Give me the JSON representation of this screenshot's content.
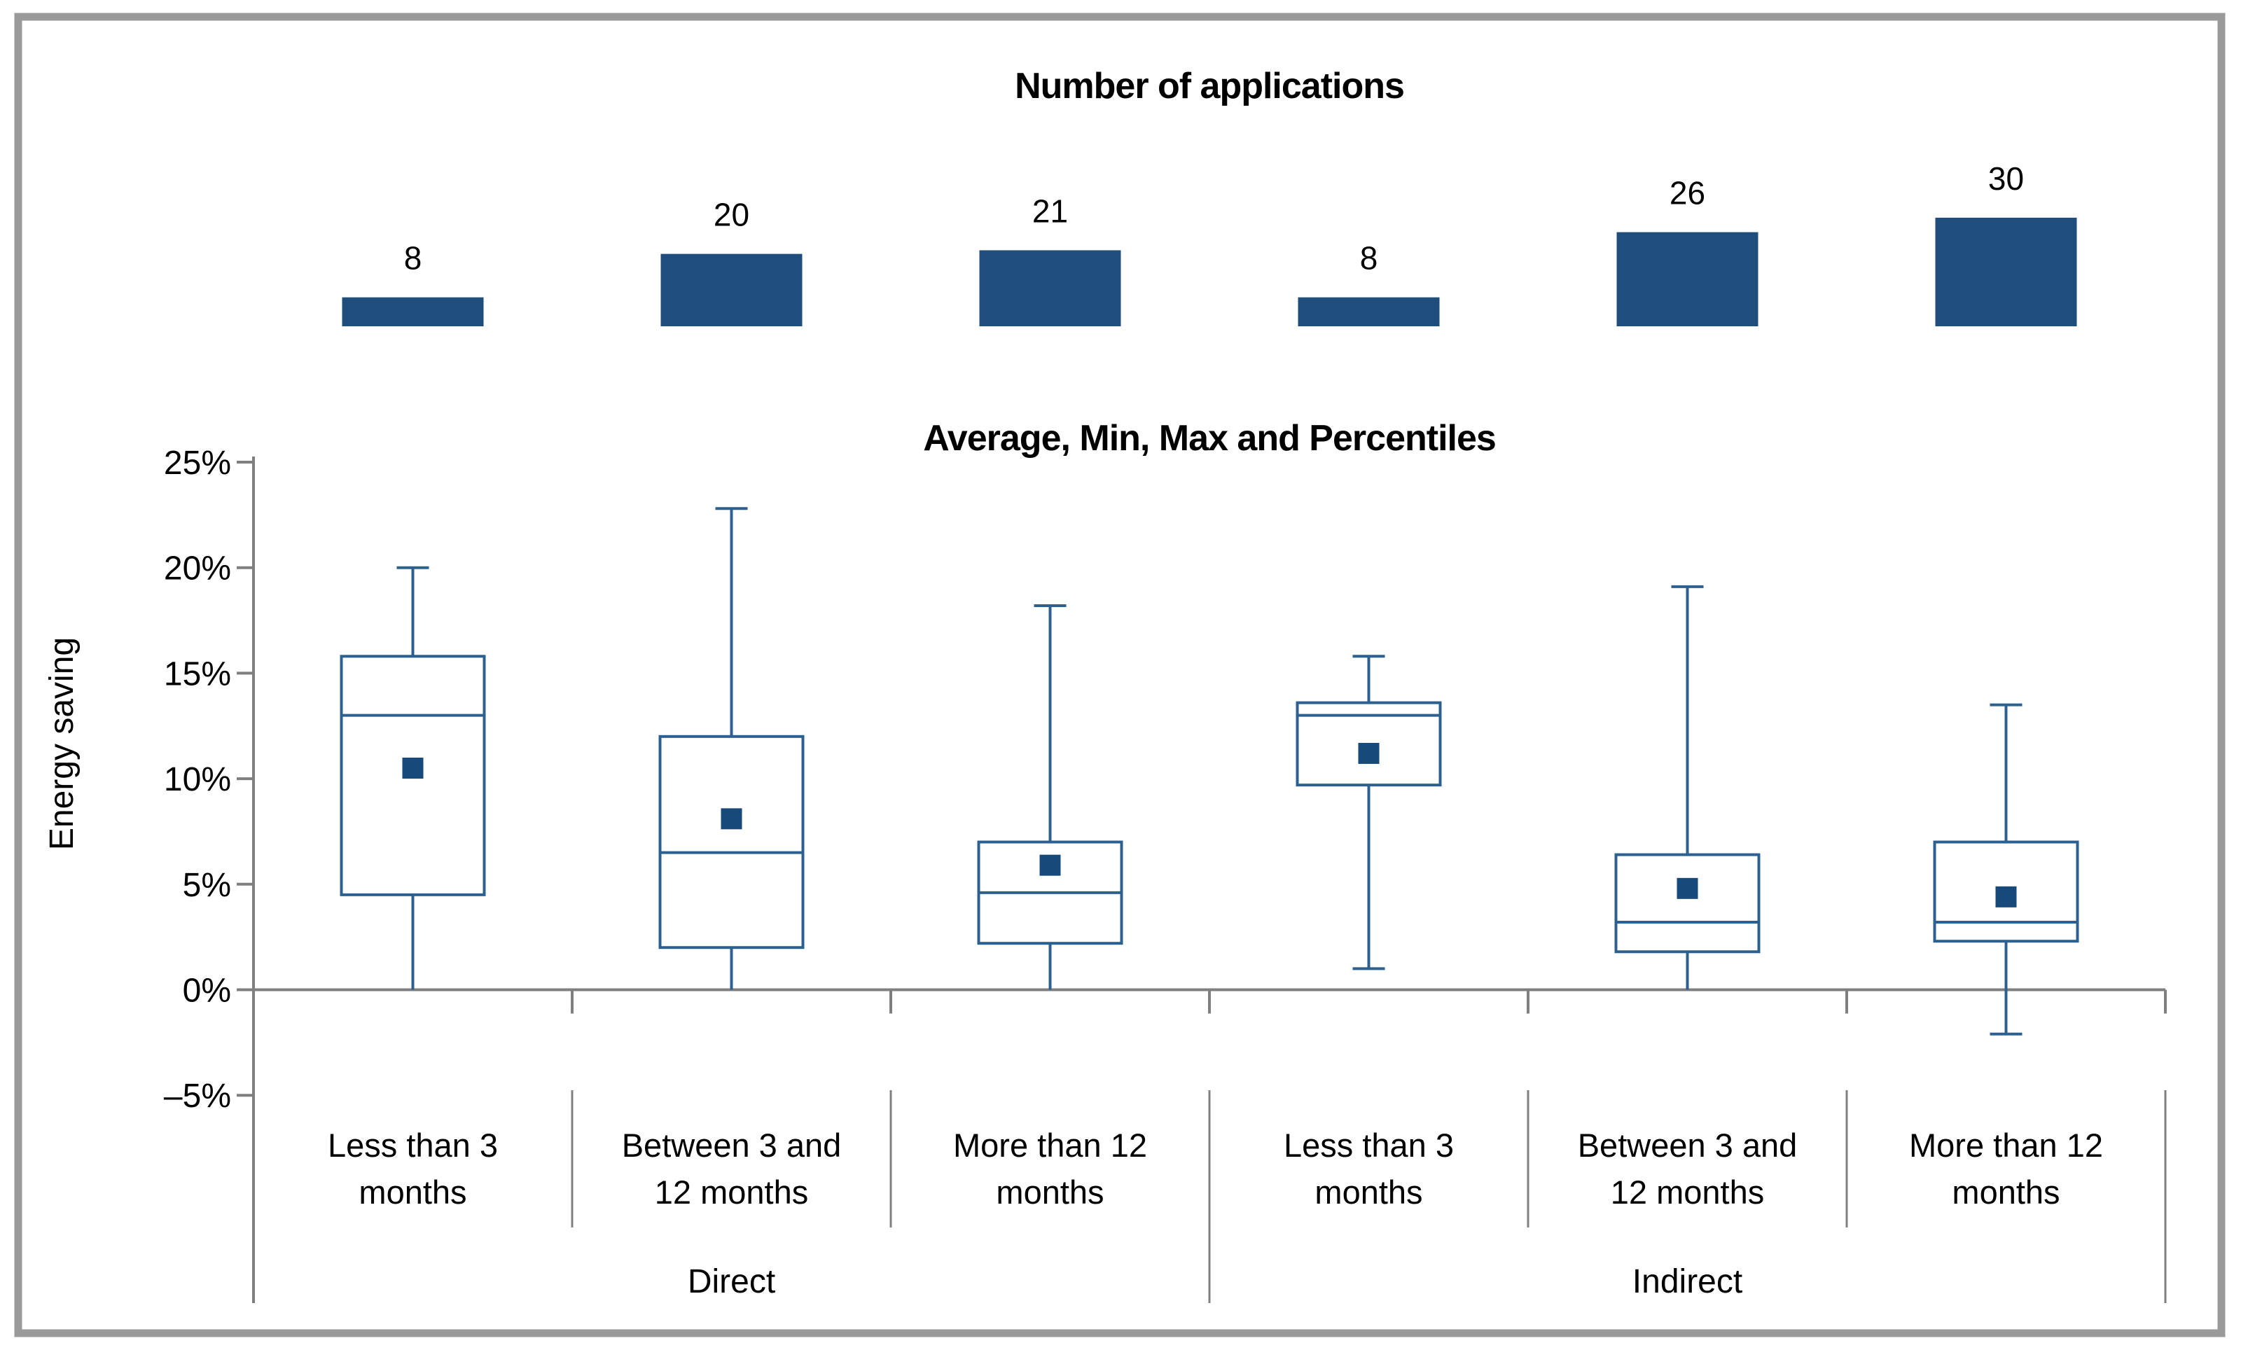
{
  "colors": {
    "bar_fill": "#1F4E7C",
    "box_line": "#2C6090",
    "mean_fill": "#17497B",
    "axis_gray": "#7F7F7F",
    "separator_gray": "#808080",
    "frame_gray": "#9A9A9A",
    "text": "#000000",
    "background": "#FFFFFF"
  },
  "chart_data": [
    {
      "type": "bar",
      "title": "Number of applications",
      "categories": [
        "Direct | Less than 3 months",
        "Direct | Between 3 and 12 months",
        "Direct | More than 12 months",
        "Indirect | Less than 3 months",
        "Indirect | Between 3 and 12 months",
        "Indirect | More than 12 months"
      ],
      "values": [
        8,
        20,
        21,
        8,
        26,
        30
      ],
      "data_labels": [
        "8",
        "20",
        "21",
        "8",
        "26",
        "30"
      ],
      "ylim": [
        0,
        32
      ],
      "grid": false,
      "axis_shown": false
    },
    {
      "type": "box",
      "title": "Average, Min, Max and Percentiles",
      "ylabel": "Energy saving",
      "ylim": [
        -7,
        25
      ],
      "grid": false,
      "ytick_values": [
        25,
        20,
        15,
        10,
        5,
        0,
        -5
      ],
      "ytick_labels": [
        "25%",
        "20%",
        "15%",
        "10%",
        "5%",
        "0%",
        "–5%"
      ],
      "group_labels": [
        "Direct",
        "Indirect"
      ],
      "category_labels": [
        [
          "Less than 3",
          "months"
        ],
        [
          "Between 3 and",
          "12 months"
        ],
        [
          "More than 12",
          "months"
        ],
        [
          "Less than 3",
          "months"
        ],
        [
          "Between 3 and",
          "12 months"
        ],
        [
          "More than 12",
          "months"
        ]
      ],
      "series": [
        {
          "group": "Direct",
          "category": "Less than 3 months",
          "min": 0,
          "q1": 4.5,
          "median": 13.0,
          "q3": 15.8,
          "max": 20.0,
          "mean": 10.5
        },
        {
          "group": "Direct",
          "category": "Between 3 and 12 months",
          "min": 0,
          "q1": 2.0,
          "median": 6.5,
          "q3": 12.0,
          "max": 22.8,
          "mean": 8.1
        },
        {
          "group": "Direct",
          "category": "More than 12 months",
          "min": 0,
          "q1": 2.2,
          "median": 4.6,
          "q3": 7.0,
          "max": 18.2,
          "mean": 5.9
        },
        {
          "group": "Indirect",
          "category": "Less than 3 months",
          "min": 1.0,
          "q1": 9.7,
          "median": 13.0,
          "q3": 13.6,
          "max": 15.8,
          "mean": 11.2
        },
        {
          "group": "Indirect",
          "category": "Between 3 and 12 months",
          "min": 0,
          "q1": 1.8,
          "median": 3.2,
          "q3": 6.4,
          "max": 19.1,
          "mean": 4.8
        },
        {
          "group": "Indirect",
          "category": "More than 12 months",
          "min": -2.1,
          "q1": 2.3,
          "median": 3.2,
          "q3": 7.0,
          "max": 13.5,
          "mean": 4.4
        }
      ]
    }
  ]
}
